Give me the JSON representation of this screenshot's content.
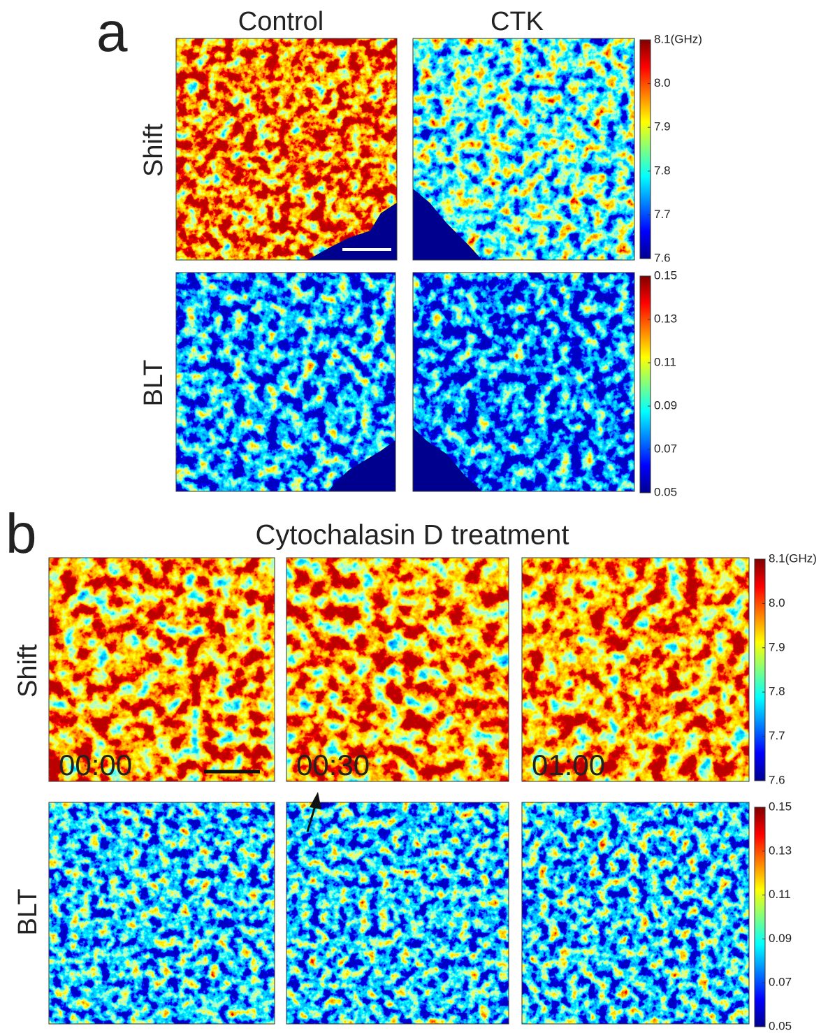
{
  "panel_a": {
    "label": "a",
    "columns": [
      "Control",
      "CTK"
    ],
    "rows": [
      "Shift",
      "BLT"
    ],
    "colorbars": [
      [
        "8.1(GHz)",
        "8.0",
        "7.9",
        "7.8",
        "7.7",
        "7.6"
      ],
      [
        "0.15",
        "0.13",
        "0.11",
        "0.09",
        "0.07",
        "0.05"
      ]
    ]
  },
  "panel_b": {
    "label": "b",
    "title": "Cytochalasin D treatment",
    "rows": [
      "Shift",
      "BLT"
    ],
    "timestamps": [
      "00:00",
      "00:30",
      "01:00"
    ],
    "colorbars": [
      [
        "8.1(GHz)",
        "8.0",
        "7.9",
        "7.8",
        "7.7",
        "7.6"
      ],
      [
        "0.15",
        "0.13",
        "0.11",
        "0.09",
        "0.07",
        "0.05"
      ]
    ]
  }
}
